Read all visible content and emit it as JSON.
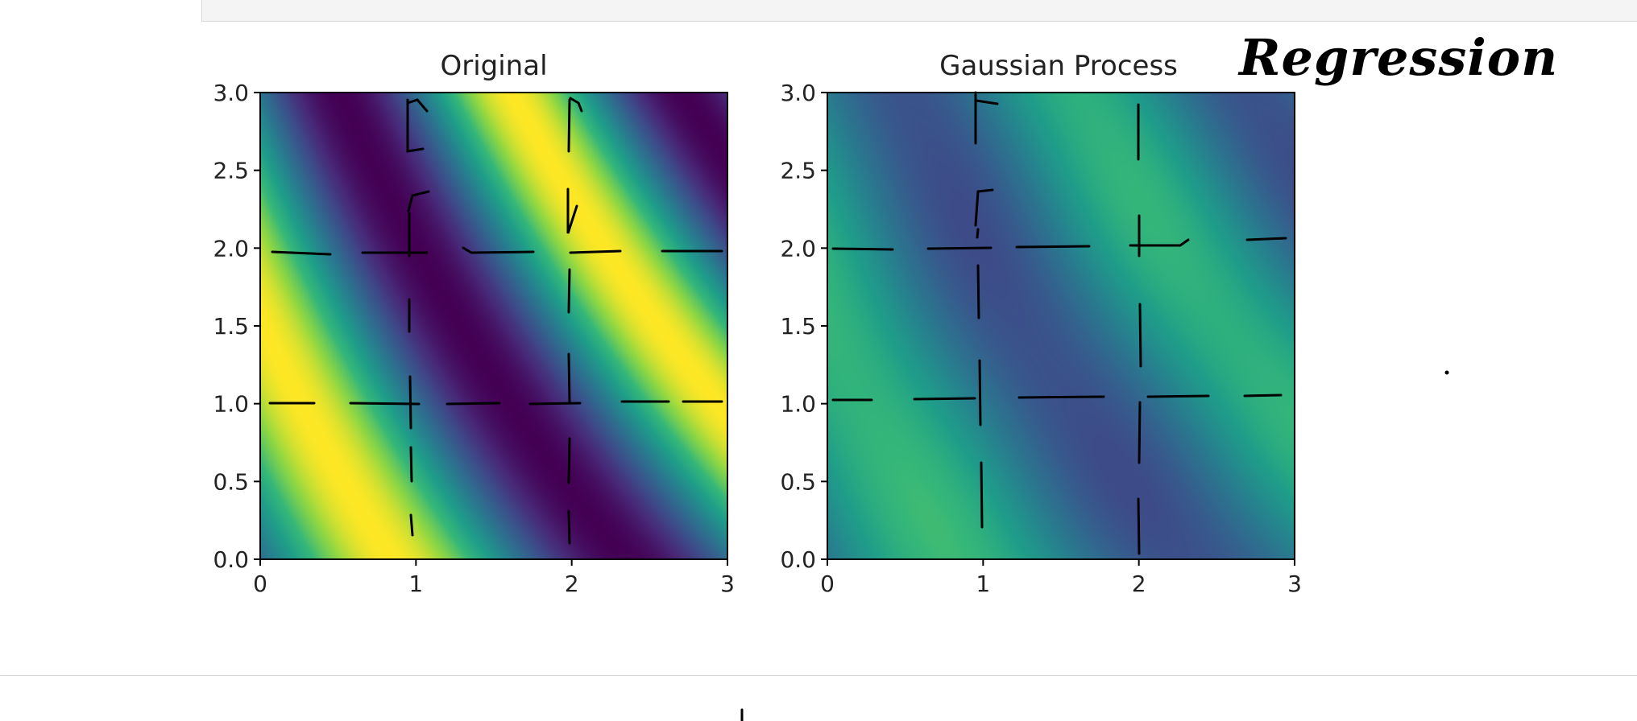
{
  "chart_data": [
    {
      "type": "heatmap",
      "title": "Original",
      "xlim": [
        0,
        3
      ],
      "ylim": [
        0,
        3
      ],
      "x_ticks": [
        "0",
        "1",
        "2",
        "3"
      ],
      "y_ticks": [
        "0.0",
        "0.5",
        "1.0",
        "1.5",
        "2.0",
        "2.5",
        "3.0"
      ],
      "colormap": "viridis",
      "grid": true
    },
    {
      "type": "heatmap",
      "title": "Gaussian Process",
      "xlim": [
        0,
        3
      ],
      "ylim": [
        0,
        3
      ],
      "x_ticks": [
        "0",
        "1",
        "2",
        "3"
      ],
      "y_ticks": [
        "0.0",
        "0.5",
        "1.0",
        "1.5",
        "2.0",
        "2.5",
        "3.0"
      ],
      "colormap": "viridis",
      "grid": true
    }
  ],
  "annotation": "Regression",
  "colors": {
    "viridis_dark": "#440154",
    "viridis_blue": "#31688e",
    "viridis_teal": "#21918c",
    "viridis_green": "#35b779",
    "viridis_yellow": "#fde725"
  }
}
